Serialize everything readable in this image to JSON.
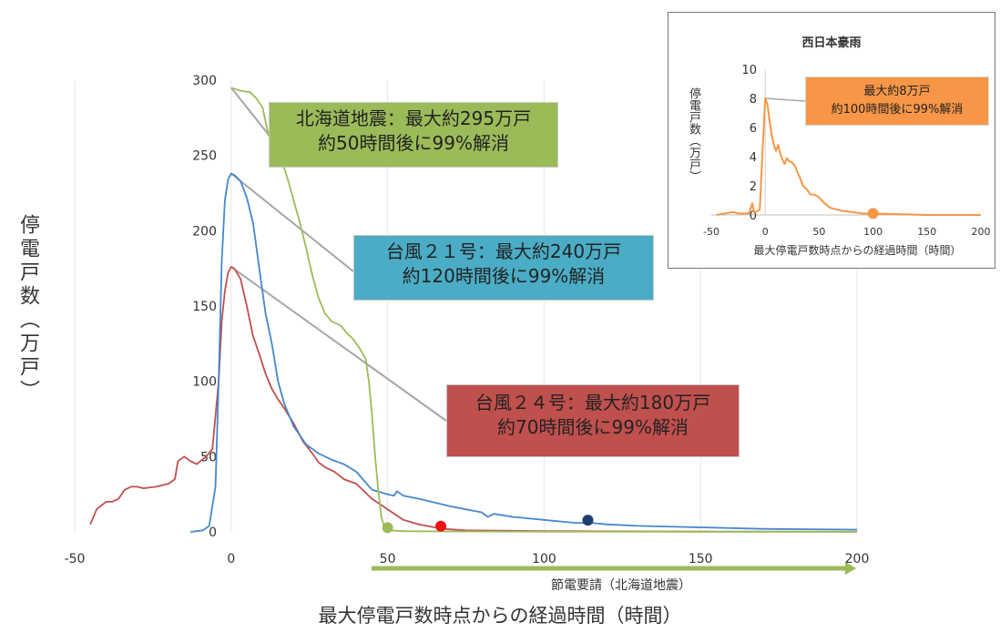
{
  "main": {
    "ylabel": "停電戸数（万戸）",
    "xlabel": "最大停電戸数時点からの経過時間（時間）",
    "arrow_label": "節電要請（北海道地震）",
    "xticks": [
      "-50",
      "0",
      "50",
      "100",
      "150",
      "200"
    ],
    "yticks": [
      "0",
      "50",
      "100",
      "150",
      "200",
      "250",
      "300"
    ],
    "callouts": [
      {
        "line1": "北海道地震：最大約295万戸",
        "line2": "約50時間後に99%解消",
        "color": "#9bbb59"
      },
      {
        "line1": "台風２１号：最大約240万戸",
        "line2": "約120時間後に99%解消",
        "color": "#4bacc6"
      },
      {
        "line1": "台風２４号：最大約180万戸",
        "line2": "約70時間後に99%解消",
        "color": "#c0504d"
      }
    ]
  },
  "inset": {
    "title": "西日本豪雨",
    "ylabel": "停電戸数（万戸）",
    "xlabel": "最大停電戸数時点からの経過時間（時間）",
    "callout_line1": "最大約8万戸",
    "callout_line2": "約100時間後に99%解消",
    "callout_color": "#f79646",
    "xticks": [
      "-50",
      "0",
      "50",
      "100",
      "150",
      "200"
    ],
    "yticks": [
      "0",
      "2",
      "4",
      "6",
      "8",
      "10"
    ]
  },
  "chart_data": [
    {
      "type": "line",
      "xlim": [
        -50,
        200
      ],
      "ylim": [
        0,
        300
      ],
      "grid": false,
      "series": [
        {
          "name": "北海道地震",
          "color": "#9bbb59",
          "points": [
            [
              0,
              295
            ],
            [
              3,
              293
            ],
            [
              6,
              292
            ],
            [
              8,
              288
            ],
            [
              10,
              282
            ],
            [
              12,
              263
            ],
            [
              14,
              262
            ],
            [
              16,
              248
            ],
            [
              18,
              235
            ],
            [
              20,
              220
            ],
            [
              22,
              205
            ],
            [
              24,
              188
            ],
            [
              26,
              170
            ],
            [
              28,
              155
            ],
            [
              30,
              145
            ],
            [
              32,
              140
            ],
            [
              35,
              137
            ],
            [
              37,
              132
            ],
            [
              39,
              128
            ],
            [
              41,
              122
            ],
            [
              43,
              115
            ],
            [
              44,
              100
            ],
            [
              45,
              78
            ],
            [
              46,
              50
            ],
            [
              47,
              28
            ],
            [
              48,
              10
            ],
            [
              49,
              3
            ],
            [
              50,
              1
            ],
            [
              55,
              0.5
            ],
            [
              70,
              0.3
            ],
            [
              100,
              0.2
            ],
            [
              150,
              0.1
            ],
            [
              200,
              0.1
            ]
          ],
          "marker": [
            50,
            1
          ]
        },
        {
          "name": "台風２１号",
          "color": "#4488cc",
          "points": [
            [
              -13,
              0
            ],
            [
              -9,
              1
            ],
            [
              -7,
              4
            ],
            [
              -5,
              30
            ],
            [
              -4,
              100
            ],
            [
              -3,
              180
            ],
            [
              -2,
              220
            ],
            [
              -1,
              234
            ],
            [
              0,
              238
            ],
            [
              1,
              237
            ],
            [
              3,
              233
            ],
            [
              5,
              222
            ],
            [
              7,
              205
            ],
            [
              9,
              175
            ],
            [
              11,
              145
            ],
            [
              13,
              125
            ],
            [
              15,
              100
            ],
            [
              17,
              85
            ],
            [
              20,
              70
            ],
            [
              24,
              58
            ],
            [
              28,
              52
            ],
            [
              32,
              48
            ],
            [
              36,
              45
            ],
            [
              40,
              40
            ],
            [
              45,
              28
            ],
            [
              50,
              25
            ],
            [
              52,
              24
            ],
            [
              53,
              27
            ],
            [
              55,
              24
            ],
            [
              60,
              22
            ],
            [
              70,
              17
            ],
            [
              80,
              13
            ],
            [
              82,
              10
            ],
            [
              84,
              12
            ],
            [
              90,
              10
            ],
            [
              100,
              8
            ],
            [
              110,
              6
            ],
            [
              115,
              6
            ],
            [
              120,
              5
            ],
            [
              130,
              4
            ],
            [
              150,
              3
            ],
            [
              170,
              2
            ],
            [
              200,
              1.5
            ]
          ],
          "marker": [
            114,
            6
          ]
        },
        {
          "name": "台風２４号",
          "color": "#c0504d",
          "points": [
            [
              -45,
              5
            ],
            [
              -43,
              15
            ],
            [
              -40,
              20
            ],
            [
              -38,
              20
            ],
            [
              -36,
              22
            ],
            [
              -34,
              28
            ],
            [
              -32,
              30
            ],
            [
              -30,
              30
            ],
            [
              -28,
              29
            ],
            [
              -24,
              30
            ],
            [
              -20,
              32
            ],
            [
              -18,
              35
            ],
            [
              -17,
              47
            ],
            [
              -15,
              50
            ],
            [
              -13,
              47
            ],
            [
              -11,
              45
            ],
            [
              -8,
              50
            ],
            [
              -6,
              55
            ],
            [
              -4,
              100
            ],
            [
              -3,
              140
            ],
            [
              -2,
              160
            ],
            [
              -1,
              172
            ],
            [
              0,
              176
            ],
            [
              1,
              175
            ],
            [
              3,
              168
            ],
            [
              5,
              150
            ],
            [
              7,
              130
            ],
            [
              9,
              118
            ],
            [
              11,
              105
            ],
            [
              13,
              95
            ],
            [
              15,
              88
            ],
            [
              17,
              82
            ],
            [
              20,
              72
            ],
            [
              23,
              60
            ],
            [
              26,
              52
            ],
            [
              28,
              46
            ],
            [
              30,
              43
            ],
            [
              33,
              40
            ],
            [
              36,
              35
            ],
            [
              40,
              32
            ],
            [
              45,
              22
            ],
            [
              50,
              15
            ],
            [
              55,
              8
            ],
            [
              60,
              5
            ],
            [
              65,
              3
            ],
            [
              68,
              2
            ],
            [
              75,
              1
            ],
            [
              100,
              0.5
            ],
            [
              150,
              0.2
            ],
            [
              200,
              0.1
            ]
          ],
          "marker": [
            67,
            2
          ]
        }
      ]
    },
    {
      "type": "line",
      "title": "西日本豪雨",
      "xlim": [
        -50,
        200
      ],
      "ylim": [
        0,
        10
      ],
      "grid": false,
      "series": [
        {
          "name": "西日本豪雨",
          "color": "#f79646",
          "points": [
            [
              -45,
              0
            ],
            [
              -30,
              0.2
            ],
            [
              -25,
              0.1
            ],
            [
              -15,
              0.1
            ],
            [
              -12,
              0.8
            ],
            [
              -10,
              0.1
            ],
            [
              -5,
              0.4
            ],
            [
              -3,
              3.5
            ],
            [
              -1,
              6.5
            ],
            [
              0,
              8
            ],
            [
              2,
              7.6
            ],
            [
              4,
              6.5
            ],
            [
              6,
              5.5
            ],
            [
              8,
              4.8
            ],
            [
              10,
              4.4
            ],
            [
              12,
              4.8
            ],
            [
              14,
              4.2
            ],
            [
              16,
              3.8
            ],
            [
              18,
              3.5
            ],
            [
              20,
              3.9
            ],
            [
              22,
              3.7
            ],
            [
              25,
              3.6
            ],
            [
              28,
              3.3
            ],
            [
              30,
              2.9
            ],
            [
              32,
              2.6
            ],
            [
              35,
              2
            ],
            [
              38,
              1.8
            ],
            [
              40,
              1.6
            ],
            [
              42,
              1.4
            ],
            [
              45,
              1.4
            ],
            [
              48,
              1.3
            ],
            [
              50,
              1.2
            ],
            [
              55,
              0.8
            ],
            [
              60,
              0.5
            ],
            [
              70,
              0.3
            ],
            [
              80,
              0.2
            ],
            [
              90,
              0.1
            ],
            [
              100,
              0.1
            ],
            [
              150,
              0
            ],
            [
              200,
              0
            ]
          ],
          "marker": [
            100,
            0.1
          ]
        }
      ]
    }
  ]
}
